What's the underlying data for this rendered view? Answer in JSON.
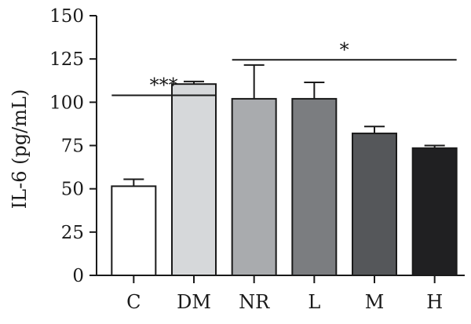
{
  "chart_data": {
    "type": "bar",
    "title": "",
    "xlabel": "",
    "ylabel": "IL-6 (pg/mL)",
    "ylim": [
      0,
      150
    ],
    "yticks": [
      0,
      25,
      50,
      75,
      100,
      125,
      150
    ],
    "categories": [
      "C",
      "DM",
      "NR",
      "L",
      "M",
      "H"
    ],
    "values": [
      51.5,
      110.5,
      102,
      102,
      82,
      73.5
    ],
    "errors": [
      4,
      1.5,
      19.5,
      9.5,
      4,
      1.5
    ],
    "bar_colors": [
      "#ffffff",
      "#d6d8da",
      "#a9abae",
      "#7b7d80",
      "#55575a",
      "#202022"
    ],
    "grid": false,
    "significance": [
      {
        "label": "***",
        "from": "C",
        "to": "DM"
      },
      {
        "label": "*",
        "from": "NR",
        "to": "H"
      }
    ]
  }
}
